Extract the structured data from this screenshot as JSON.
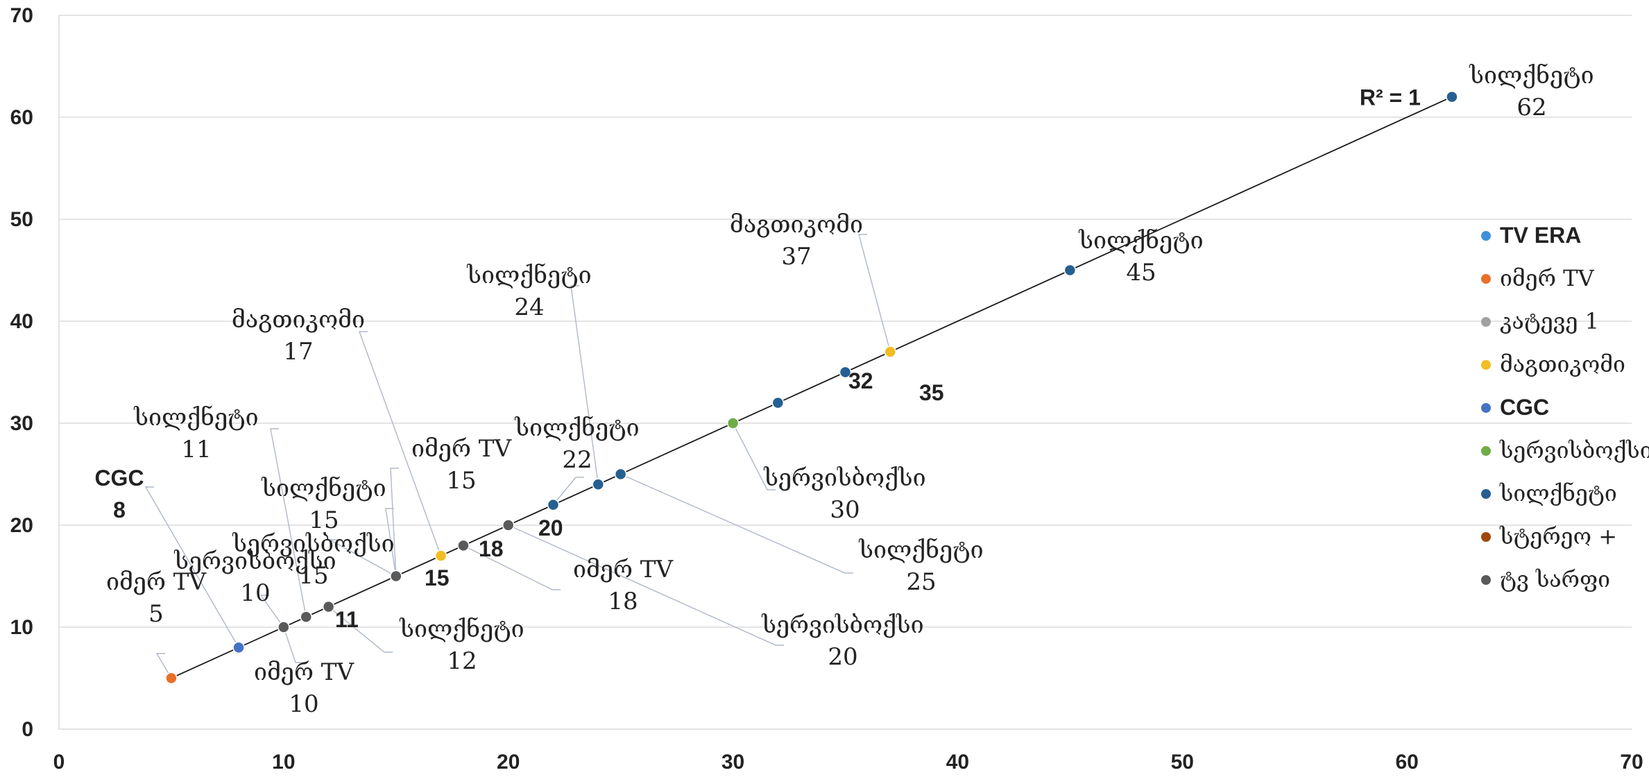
{
  "chart_data": {
    "type": "scatter",
    "title": "",
    "xlabel": "",
    "ylabel": "",
    "xlim": [
      0,
      70
    ],
    "ylim": [
      0,
      70
    ],
    "xticks": [
      0,
      10,
      20,
      30,
      40,
      50,
      60,
      70
    ],
    "yticks": [
      0,
      10,
      20,
      30,
      40,
      50,
      60,
      70
    ],
    "grid": "horizontal",
    "legend_position": "right",
    "trendline": {
      "label": "R² = 1",
      "from": [
        5,
        5
      ],
      "to": [
        62,
        62
      ]
    },
    "series": [
      {
        "name": "TV ERA",
        "color": "#3f90d8",
        "points": []
      },
      {
        "name": "იმერ TV",
        "color": "#e8702a",
        "points": [
          {
            "x": 5,
            "y": 5,
            "name": "იმერ TV",
            "value": "5"
          }
        ]
      },
      {
        "name": "კატევე 1",
        "color": "#a0a0a0",
        "points": []
      },
      {
        "name": "მაგთიკომი",
        "color": "#f2bd22",
        "points": [
          {
            "x": 17,
            "y": 17,
            "name": "მაგთიკომი",
            "value": "17"
          },
          {
            "x": 37,
            "y": 37,
            "name": "მაგთიკომი",
            "value": "37"
          }
        ]
      },
      {
        "name": "CGC",
        "color": "#4472c4",
        "points": [
          {
            "x": 8,
            "y": 8,
            "name": "CGC",
            "value": "8"
          },
          {
            "x": 18,
            "y": 18,
            "name": "",
            "value": "18"
          }
        ]
      },
      {
        "name": "სერვისბოქსი",
        "color": "#6fad47",
        "points": [
          {
            "x": 10,
            "y": 10,
            "name": "სერვისბოქსი",
            "value": "10"
          },
          {
            "x": 30,
            "y": 30,
            "name": "სერვისბოქსი",
            "value": "30"
          }
        ]
      },
      {
        "name": "სილქნეტი",
        "color": "#265f91",
        "points": [
          {
            "x": 11,
            "y": 11,
            "name": "სილქნეტი",
            "value": "11"
          },
          {
            "x": 22,
            "y": 22,
            "name": "სილქნეტი",
            "value": "22"
          },
          {
            "x": 24,
            "y": 24,
            "name": "სილქნეტი",
            "value": "24"
          },
          {
            "x": 25,
            "y": 25,
            "name": "სილქნეტი",
            "value": "25"
          },
          {
            "x": 32,
            "y": 32,
            "name": "სილქნეტი",
            "value": "32"
          },
          {
            "x": 35,
            "y": 35,
            "name": "სილქნეტი",
            "value": "35"
          },
          {
            "x": 45,
            "y": 45,
            "name": "სილქნეტი",
            "value": "45"
          },
          {
            "x": 62,
            "y": 62,
            "name": "სილქნეტი",
            "value": "62"
          }
        ]
      },
      {
        "name": "სტერეო +",
        "color": "#9e480e",
        "points": [
          {
            "x": 20,
            "y": 20,
            "name": "",
            "value": "20"
          }
        ]
      },
      {
        "name": "ტვ სარფი",
        "color": "#5a5a5a",
        "points": [
          {
            "x": 11,
            "y": 11,
            "name": "",
            "value": "11"
          },
          {
            "x": 12,
            "y": 12,
            "name": "სილქნეტი",
            "value": "12"
          },
          {
            "x": 15,
            "y": 15,
            "name": "",
            "value": "15"
          },
          {
            "x": 15,
            "y": 15,
            "name": "სილქნეტი",
            "value": "15"
          },
          {
            "x": 15,
            "y": 15,
            "name": "სერვისბოქსი",
            "value": "15"
          },
          {
            "x": 15,
            "y": 15,
            "name": "იმერ TV",
            "value": "15"
          },
          {
            "x": 10,
            "y": 10,
            "name": "იმერ TV",
            "value": "10"
          },
          {
            "x": 18,
            "y": 18,
            "name": "იმერ TV",
            "value": "18"
          },
          {
            "x": 20,
            "y": 20,
            "name": "სერვისბოქსი",
            "value": "20"
          }
        ]
      }
    ]
  }
}
